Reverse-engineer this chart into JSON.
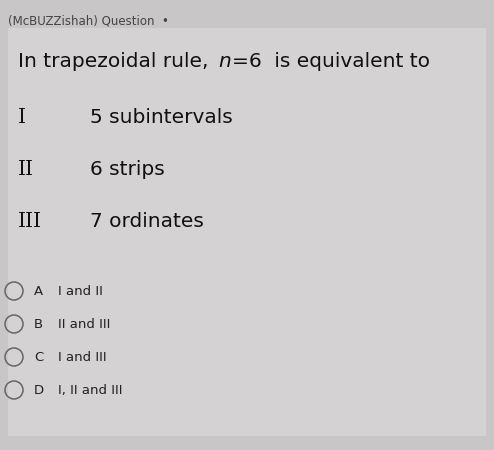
{
  "background_color": "#c8c6c6",
  "header_text": "(McBUZZishah) Question  •",
  "header_fontsize": 8.5,
  "header_color": "#444444",
  "question_fontsize": 14.5,
  "items": [
    {
      "label": "I",
      "text": "5 subintervals"
    },
    {
      "label": "II",
      "text": "6 strips"
    },
    {
      "label": "III",
      "text": "7 ordinates"
    }
  ],
  "item_label_fontsize": 14.5,
  "item_text_fontsize": 14.5,
  "options": [
    {
      "letter": "A",
      "text": "I and II"
    },
    {
      "letter": "B",
      "text": "II and III"
    },
    {
      "letter": "C",
      "text": "I and III"
    },
    {
      "letter": "D",
      "text": "I, II and III"
    }
  ],
  "option_fontsize": 9.5,
  "circle_color": "#666666"
}
